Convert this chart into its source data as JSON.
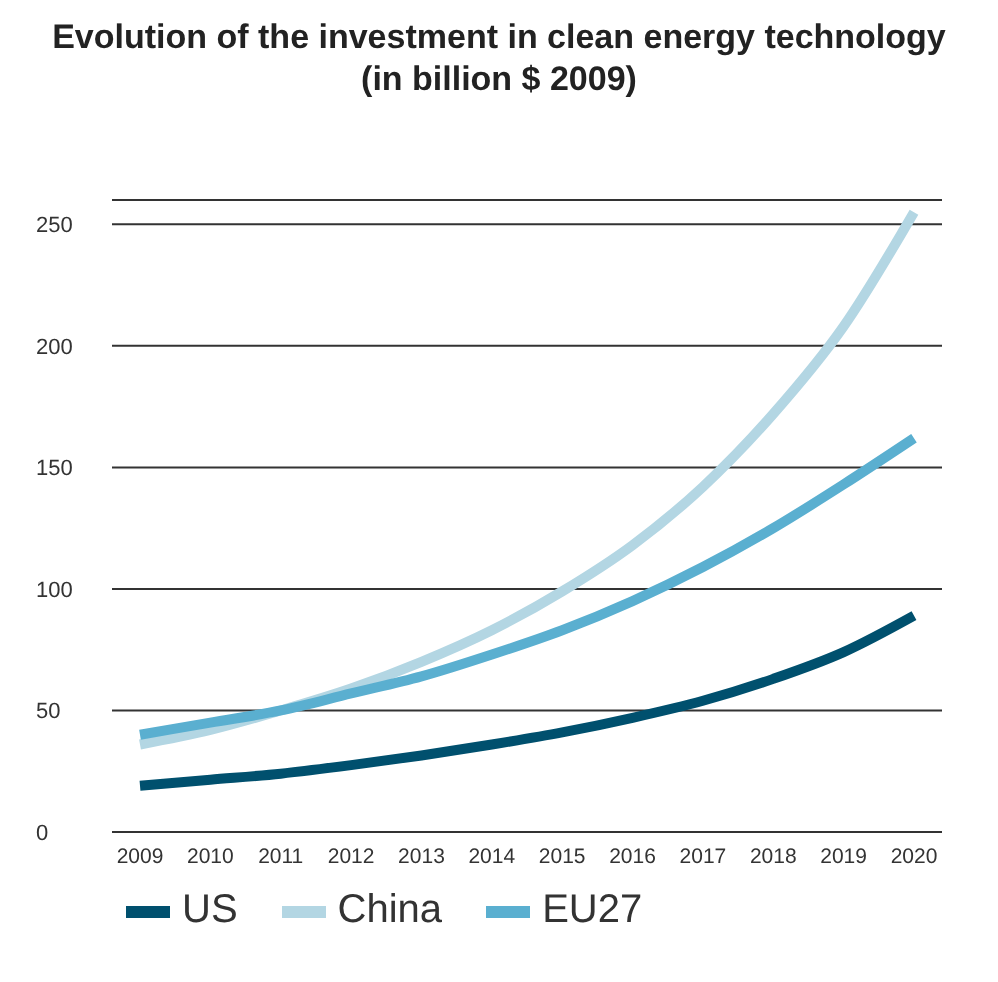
{
  "chart_data": {
    "type": "line",
    "title": "Evolution of the investment in clean energy technology",
    "subtitle": "(in billion $ 2009)",
    "categories": [
      "2009",
      "2010",
      "2011",
      "2012",
      "2013",
      "2014",
      "2015",
      "2016",
      "2017",
      "2018",
      "2019",
      "2020"
    ],
    "series": [
      {
        "name": "US",
        "color": "#00506e",
        "values": [
          19,
          21.5,
          24,
          27.5,
          31.5,
          36,
          41,
          47,
          54,
          63,
          74,
          89
        ]
      },
      {
        "name": "China",
        "color": "#b3d6e3",
        "values": [
          36,
          42,
          50,
          59,
          70,
          83,
          99,
          118,
          142,
          172,
          208,
          255
        ]
      },
      {
        "name": "EU27",
        "color": "#5aafd0",
        "values": [
          40,
          45,
          50,
          57,
          64,
          73,
          83,
          95,
          109,
          125,
          143,
          162
        ]
      }
    ],
    "ylim": [
      0,
      260
    ],
    "yticks": [
      0,
      50,
      100,
      150,
      200,
      250
    ],
    "grid": "y",
    "legend": "bottom",
    "marker": "none",
    "line_style": "solid"
  }
}
